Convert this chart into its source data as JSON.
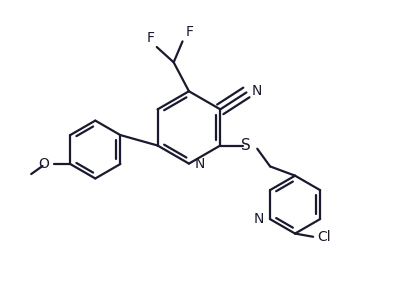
{
  "background_color": "#ffffff",
  "line_color": "#1a1a2e",
  "text_color": "#1a1a2e",
  "line_width": 1.6,
  "font_size": 10,
  "figsize": [
    4.02,
    2.83
  ],
  "dpi": 100,
  "xlim": [
    0,
    10
  ],
  "ylim": [
    0,
    7
  ]
}
